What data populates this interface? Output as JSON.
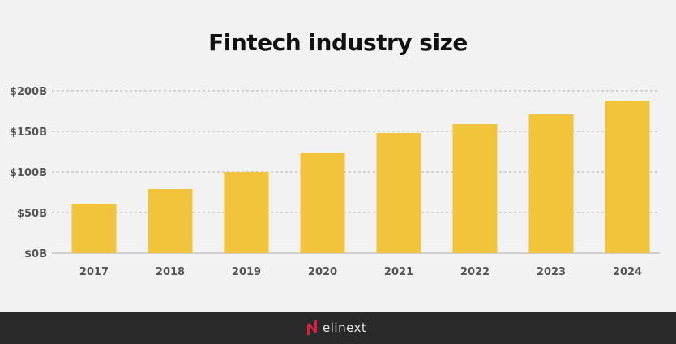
{
  "chart_data": {
    "type": "bar",
    "title": "Fintech industry size",
    "xlabel": "",
    "ylabel": "",
    "categories": [
      "2017",
      "2018",
      "2019",
      "2020",
      "2021",
      "2022",
      "2023",
      "2024"
    ],
    "values": [
      61,
      79,
      100,
      124,
      148,
      159,
      171,
      188
    ],
    "unit": "billion USD",
    "ylim": [
      0,
      200
    ],
    "yticks": [
      0,
      50,
      100,
      150,
      200
    ],
    "ytick_labels": [
      "$0B",
      "$50B",
      "$100B",
      "$150B",
      "$200B"
    ],
    "grid": true,
    "legend": "none",
    "bar_color": "#f2c43c"
  },
  "footer": {
    "brand": "elinext",
    "brand_accent_color": "#e0203a"
  }
}
